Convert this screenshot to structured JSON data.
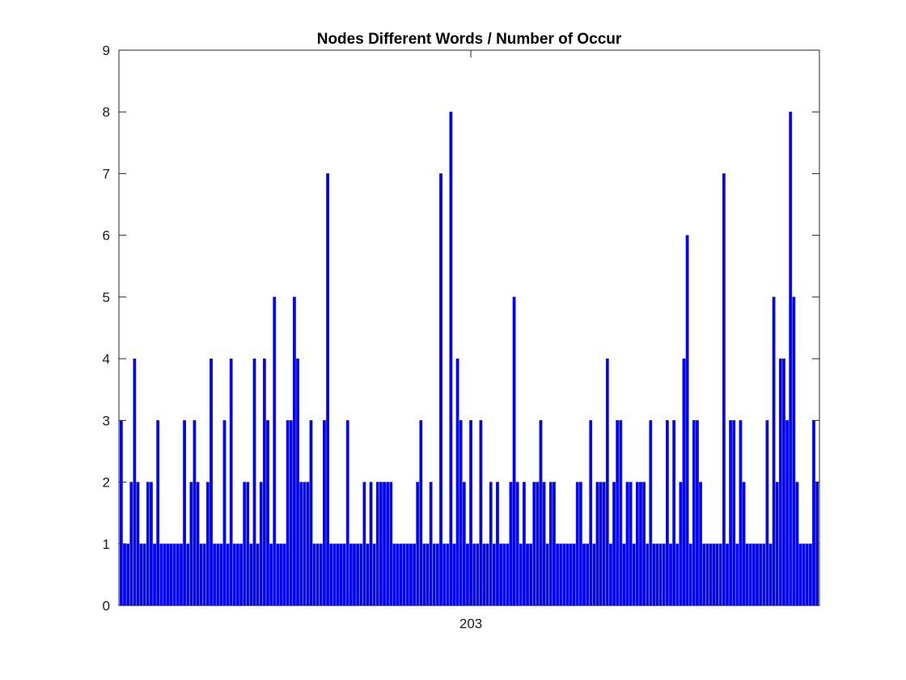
{
  "chart_data": {
    "type": "bar",
    "title": "Nodes Different Words / Number of Occur",
    "xlabel": "",
    "ylabel": "",
    "x_tick_labels": [
      "203"
    ],
    "x_tick_index": 105,
    "ylim": [
      0,
      9
    ],
    "yticks": [
      0,
      1,
      2,
      3,
      4,
      5,
      6,
      7,
      8,
      9
    ],
    "grid": false,
    "legend": "none",
    "bar_color": "#0000ff",
    "bar_edge_color": "#1a1ad0",
    "values": [
      3,
      1,
      1,
      2,
      4,
      2,
      1,
      1,
      2,
      2,
      1,
      3,
      1,
      1,
      1,
      1,
      1,
      1,
      1,
      3,
      1,
      2,
      3,
      2,
      1,
      1,
      2,
      4,
      1,
      1,
      1,
      3,
      1,
      4,
      1,
      1,
      1,
      2,
      2,
      1,
      4,
      1,
      2,
      4,
      3,
      1,
      5,
      1,
      1,
      1,
      3,
      3,
      5,
      4,
      2,
      2,
      2,
      3,
      1,
      1,
      1,
      3,
      7,
      1,
      1,
      1,
      1,
      1,
      3,
      1,
      1,
      1,
      1,
      2,
      1,
      2,
      1,
      2,
      2,
      2,
      2,
      2,
      1,
      1,
      1,
      1,
      1,
      1,
      1,
      2,
      3,
      1,
      1,
      2,
      1,
      1,
      7,
      1,
      1,
      8,
      1,
      4,
      3,
      2,
      1,
      3,
      1,
      1,
      3,
      1,
      1,
      2,
      1,
      2,
      1,
      1,
      1,
      2,
      5,
      2,
      1,
      2,
      1,
      1,
      2,
      2,
      3,
      2,
      1,
      2,
      2,
      1,
      1,
      1,
      1,
      1,
      1,
      2,
      2,
      1,
      1,
      3,
      1,
      2,
      2,
      2,
      4,
      1,
      2,
      3,
      3,
      1,
      2,
      2,
      1,
      2,
      2,
      2,
      1,
      3,
      1,
      1,
      1,
      1,
      3,
      1,
      3,
      1,
      2,
      4,
      6,
      1,
      3,
      3,
      2,
      1,
      1,
      1,
      1,
      1,
      1,
      7,
      1,
      3,
      3,
      1,
      3,
      2,
      1,
      1,
      1,
      1,
      1,
      1,
      3,
      1,
      5,
      2,
      4,
      4,
      3,
      8,
      5,
      2,
      1,
      1,
      1,
      1,
      3,
      2
    ]
  }
}
